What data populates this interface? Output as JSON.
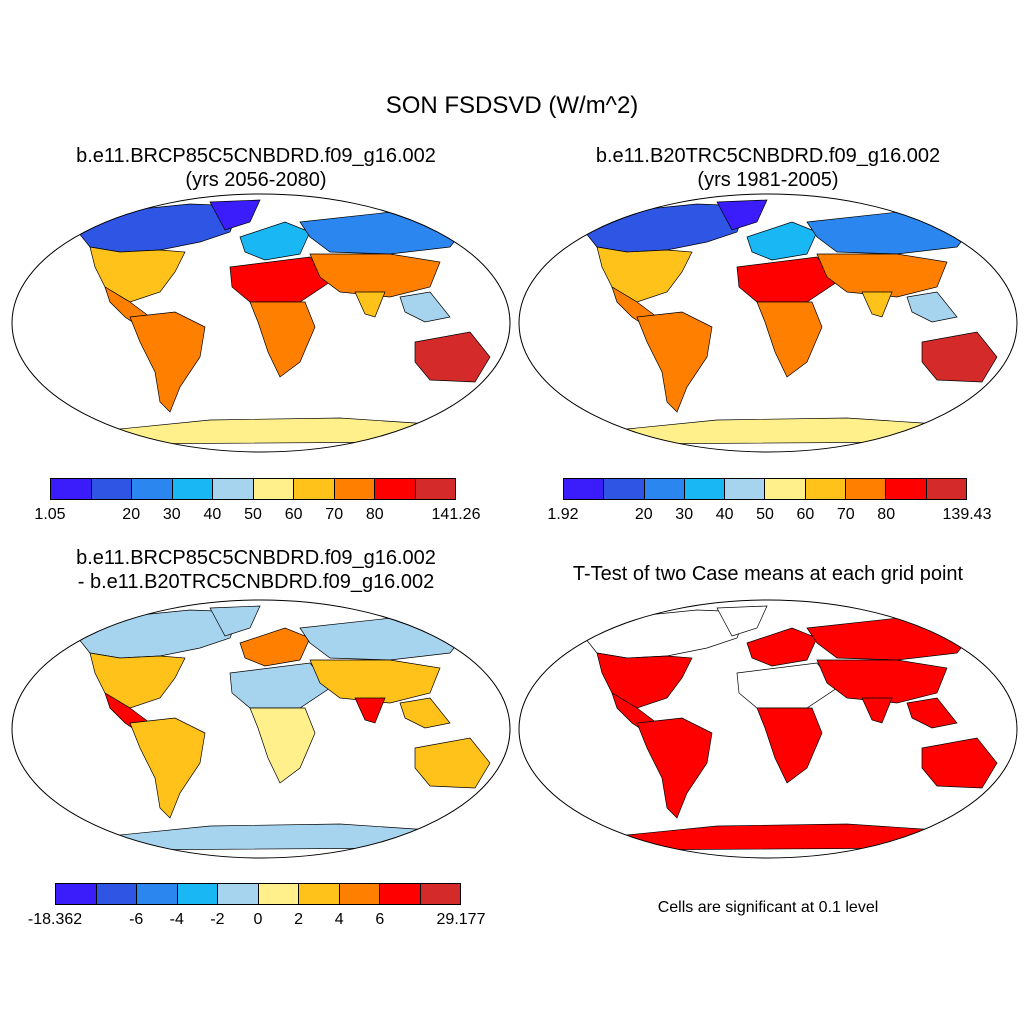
{
  "title": "SON FSDSVD (W/m^2)",
  "colors": {
    "scale": [
      "#3a1dfa",
      "#2f55e4",
      "#2c86ef",
      "#19b8f5",
      "#a6d3ee",
      "#fff08c",
      "#ffc21a",
      "#ff7f00",
      "#ff0000",
      "#d42a2a"
    ],
    "significant": "#ff0000",
    "land_outline": "#000000",
    "ocean": "#ffffff"
  },
  "panels": [
    {
      "id": "case1",
      "title_line1": "b.e11.BRCP85C5CNBDRD.f09_g16.002",
      "title_line2": "(yrs 2056-2080)",
      "colorbar_labels": [
        "1.05",
        "20",
        "30",
        "40",
        "50",
        "60",
        "70",
        "80",
        "141.26"
      ]
    },
    {
      "id": "case2",
      "title_line1": "b.e11.B20TRC5CNBDRD.f09_g16.002",
      "title_line2": "(yrs 1981-2005)",
      "colorbar_labels": [
        "1.92",
        "20",
        "30",
        "40",
        "50",
        "60",
        "70",
        "80",
        "139.43"
      ]
    },
    {
      "id": "difference",
      "title_line1": "b.e11.BRCP85C5CNBDRD.f09_g16.002",
      "title_line2": "- b.e11.B20TRC5CNBDRD.f09_g16.002",
      "colorbar_labels": [
        "-18.362",
        "-6",
        "-4",
        "-2",
        "0",
        "2",
        "4",
        "6",
        "29.177"
      ]
    },
    {
      "id": "ttest",
      "title_line1": "T-Test of two Case means at each grid point",
      "note": "Cells are significant at 0.1 level"
    }
  ]
}
